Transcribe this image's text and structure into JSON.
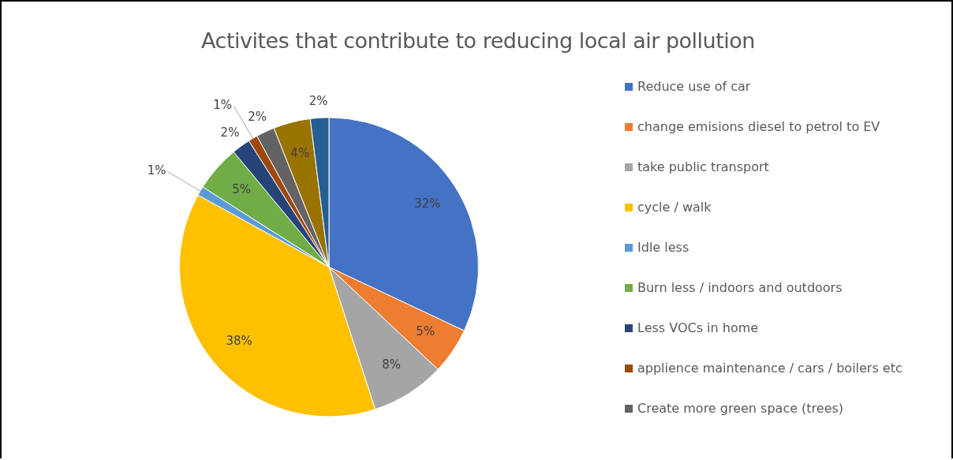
{
  "chart_data": {
    "type": "pie",
    "title": "Activites that contribute to reducing local air pollution",
    "categories": [
      "Reduce use of car",
      "change emisions diesel  to petrol to EV",
      "take public transport",
      "cycle / walk",
      "Idle less",
      "Burn less / indoors and outdoors",
      "Less VOCs in home",
      "applience maintenance / cars / boilers etc",
      "Create more green space (trees)",
      null,
      null
    ],
    "values": [
      32,
      5,
      8,
      38,
      1,
      5,
      2,
      1,
      2,
      4,
      2
    ],
    "value_labels": [
      "32%",
      "5%",
      "8%",
      "38%",
      "1%",
      "5%",
      "2%",
      "1%",
      "2%",
      "4%",
      "2%"
    ],
    "colors": [
      "#4472c4",
      "#ed7d31",
      "#a5a5a5",
      "#ffc000",
      "#5b9bd5",
      "#70ad47",
      "#264478",
      "#9e480e",
      "#636363",
      "#997300",
      "#255e91"
    ],
    "legend": "right"
  }
}
